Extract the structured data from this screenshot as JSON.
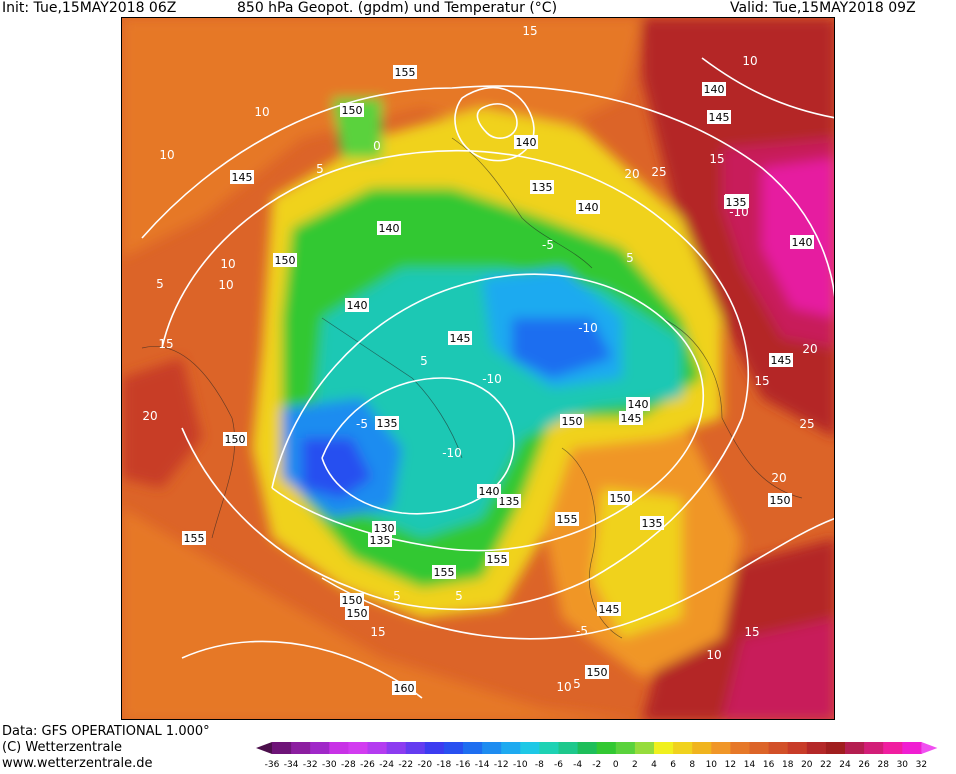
{
  "header": {
    "init": "Init: Tue,15MAY2018 06Z",
    "title": "850 hPa Geopot. (gpdm) und Temperatur (°C)",
    "valid": "Valid: Tue,15MAY2018 09Z"
  },
  "footer": {
    "data_line": "Data: GFS OPERATIONAL 1.000°",
    "copyright": "(C) Wetterzentrale",
    "url": "www.wetterzentrale.de"
  },
  "legend": {
    "ticks": [
      "-36",
      "-34",
      "-32",
      "-30",
      "-28",
      "-26",
      "-24",
      "-22",
      "-20",
      "-18",
      "-16",
      "-14",
      "-12",
      "-10",
      "-8",
      "-6",
      "-4",
      "-2",
      "0",
      "2",
      "4",
      "6",
      "8",
      "10",
      "12",
      "14",
      "16",
      "18",
      "20",
      "22",
      "24",
      "26",
      "28",
      "30",
      "32"
    ],
    "colors": [
      "#4b0f4b",
      "#6e1478",
      "#8c1ea0",
      "#a028c8",
      "#c832e6",
      "#d23cf0",
      "#b43cf0",
      "#8c3cf0",
      "#643cf0",
      "#3c3cf0",
      "#2850f0",
      "#1e6ef0",
      "#1e8cf0",
      "#1eaaf0",
      "#1ec8e6",
      "#1ed2b4",
      "#1ec88c",
      "#1ebe5a",
      "#32c832",
      "#5ad23c",
      "#96dc3c",
      "#f0f01e",
      "#f0d21e",
      "#f0b41e",
      "#f09628",
      "#e67828",
      "#dc6428",
      "#d25028",
      "#c83c28",
      "#b42828",
      "#a01e1e",
      "#b41e50",
      "#d21e78",
      "#f01ea0",
      "#f01ed2",
      "#f050f0"
    ]
  },
  "map": {
    "geopotential_labels": [
      "155",
      "150",
      "145",
      "140",
      "135",
      "140",
      "140",
      "135",
      "150",
      "140",
      "145",
      "145",
      "135",
      "140",
      "150",
      "145",
      "135",
      "150",
      "150",
      "155",
      "150",
      "140",
      "135",
      "145",
      "130",
      "135",
      "135",
      "140",
      "155",
      "140",
      "150",
      "145",
      "150",
      "155",
      "160",
      "150",
      "155"
    ],
    "temperature_labels": [
      "15",
      "10",
      "10",
      "5",
      "5",
      "0",
      "10",
      "5",
      "-5",
      "-10",
      "-10",
      "-5",
      "5",
      "-10",
      "15",
      "10",
      "-10",
      "25",
      "20",
      "20",
      "15",
      "25",
      "20",
      "15",
      "10",
      "5",
      "-5",
      "5",
      "15",
      "20",
      "10",
      "15",
      "10",
      "5"
    ]
  }
}
